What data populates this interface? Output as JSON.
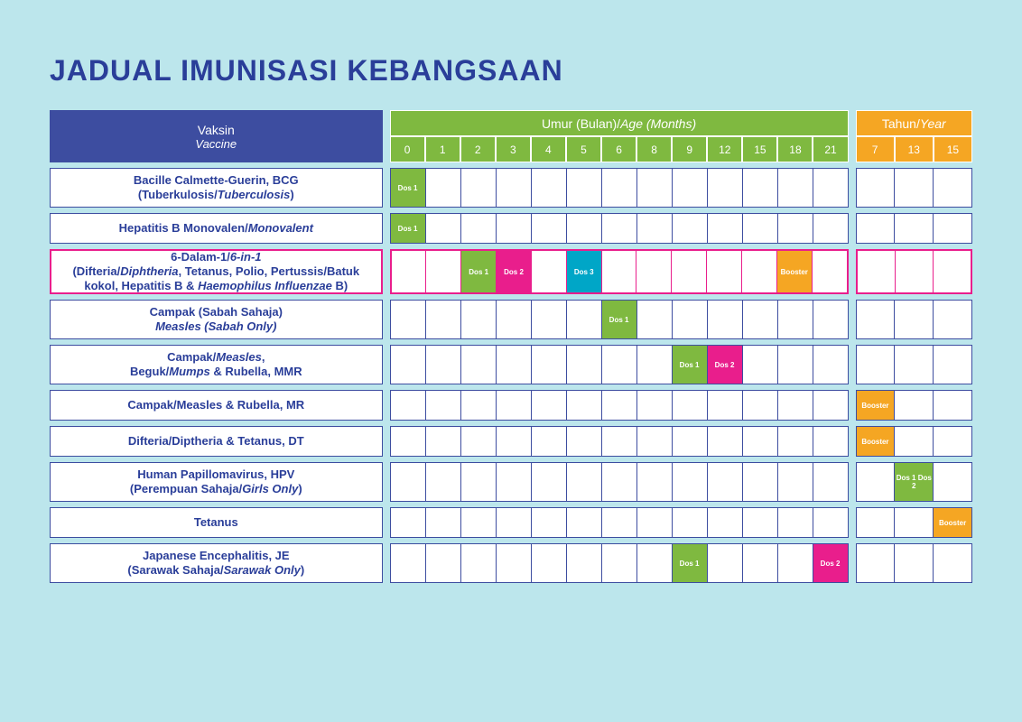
{
  "title": "JADUAL IMUNISASI KEBANGSAAN",
  "colors": {
    "page_bg": "#bce6ec",
    "header_blue": "#3d4da0",
    "text_blue": "#2a3e99",
    "green": "#7fb940",
    "orange": "#f5a623",
    "pink": "#e91e8c",
    "cyan": "#00a6c7",
    "white": "#ffffff"
  },
  "header": {
    "vaccine_label": "Vaksin",
    "vaccine_sub": "Vaccine",
    "months_label": "Umur (Bulan)/",
    "months_sub": "Age (Months)",
    "months": [
      "0",
      "1",
      "2",
      "3",
      "4",
      "5",
      "6",
      "8",
      "9",
      "12",
      "15",
      "18",
      "21"
    ],
    "years_label": "Tahun/",
    "years_sub": "Year",
    "years": [
      "7",
      "13",
      "15"
    ]
  },
  "rows": [
    {
      "height": "row-h-med",
      "name_lines": [
        "Bacille Calmette-Guerin, BCG",
        "(Tuberkulosis/<i>Tuberculosis</i>)"
      ],
      "doses": [
        {
          "col": "m0",
          "label": "Dos 1",
          "color": "green"
        }
      ]
    },
    {
      "height": "row-h-sm",
      "name_lines": [
        "Hepatitis B Monovalen/<i>Monovalent</i>"
      ],
      "doses": [
        {
          "col": "m0",
          "label": "Dos 1",
          "color": "green"
        }
      ]
    },
    {
      "height": "row-h-lg",
      "highlight": true,
      "name_lines": [
        "6-Dalam-1/<i>6-in-1</i>",
        "(Difteria/<i>Diphtheria</i>, Tetanus, Polio, Pertussis/Batuk",
        "kokol, Hepatitis B & <i>Haemophilus Influenzae</i> B)"
      ],
      "doses": [
        {
          "col": "m2",
          "label": "Dos 1",
          "color": "green"
        },
        {
          "col": "m3",
          "label": "Dos 2",
          "color": "pink"
        },
        {
          "col": "m5",
          "label": "Dos 3",
          "color": "cyan"
        },
        {
          "col": "m18",
          "label": "Booster",
          "color": "orange"
        }
      ]
    },
    {
      "height": "row-h-med",
      "name_lines": [
        "Campak (Sabah Sahaja)",
        "<i>Measles (Sabah Only)</i>"
      ],
      "doses": [
        {
          "col": "m6",
          "label": "Dos 1",
          "color": "green"
        }
      ]
    },
    {
      "height": "row-h-med",
      "name_lines": [
        "Campak/<i>Measles</i>,",
        "Beguk/<i>Mumps</i> & Rubella, MMR"
      ],
      "doses": [
        {
          "col": "m9",
          "label": "Dos 1",
          "color": "green"
        },
        {
          "col": "m12",
          "label": "Dos 2",
          "color": "pink"
        }
      ]
    },
    {
      "height": "row-h-sm",
      "name_lines": [
        "Campak/Measles & Rubella, MR"
      ],
      "doses": [
        {
          "col": "y7",
          "label": "Booster",
          "color": "orange"
        }
      ]
    },
    {
      "height": "row-h-sm",
      "name_lines": [
        "Difteria/Diptheria & Tetanus, DT"
      ],
      "doses": [
        {
          "col": "y7",
          "label": "Booster",
          "color": "orange"
        }
      ]
    },
    {
      "height": "row-h-med",
      "name_lines": [
        "Human Papillomavirus, HPV",
        "(Perempuan Sahaja/<i>Girls Only</i>)"
      ],
      "doses": [
        {
          "col": "y13",
          "label": "Dos 1 Dos 2",
          "color": "green"
        }
      ]
    },
    {
      "height": "row-h-sm",
      "name_lines": [
        "Tetanus"
      ],
      "doses": [
        {
          "col": "y15",
          "label": "Booster",
          "color": "orange"
        }
      ]
    },
    {
      "height": "row-h-med",
      "name_lines": [
        "Japanese Encephalitis, JE",
        "(Sarawak Sahaja/<i>Sarawak Only</i>)"
      ],
      "doses": [
        {
          "col": "m9",
          "label": "Dos 1",
          "color": "green"
        },
        {
          "col": "m21",
          "label": "Dos 2",
          "color": "pink"
        }
      ]
    }
  ]
}
